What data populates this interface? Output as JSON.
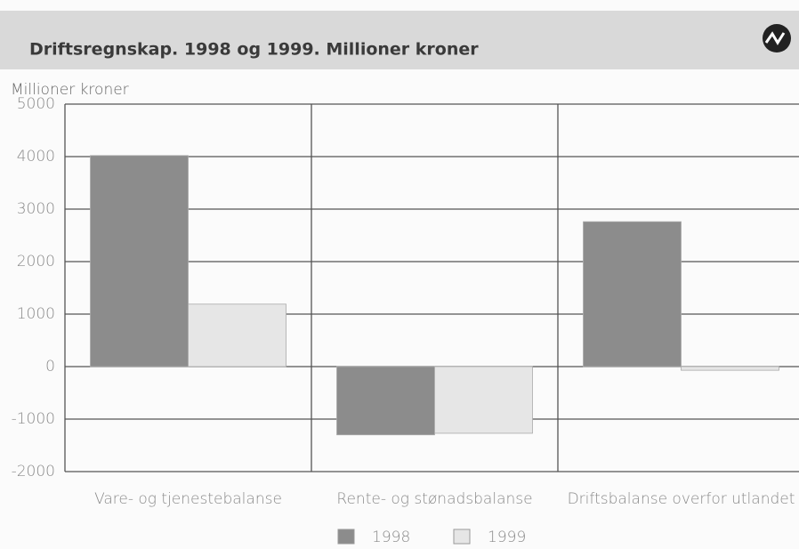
{
  "chart_data": {
    "type": "bar",
    "title": "Driftsregnskap. 1998 og 1999. Millioner kroner",
    "y_label": "Millioner kroner",
    "categories": [
      "Vare- og tjenestebalanse",
      "Rente- og stønadsbalanse",
      "Driftsbalanse overfor utlandet"
    ],
    "series": [
      {
        "name": "1998",
        "color": "#8c8c8c",
        "values": [
          4020,
          -1300,
          2760
        ]
      },
      {
        "name": "1999",
        "color": "#e6e6e6",
        "values": [
          1190,
          -1270,
          -70
        ]
      }
    ],
    "ylim": [
      -2000,
      5000
    ],
    "yticks": [
      -2000,
      -1000,
      0,
      1000,
      2000,
      3000,
      4000,
      5000
    ],
    "grid": true,
    "legend": "bottom"
  }
}
